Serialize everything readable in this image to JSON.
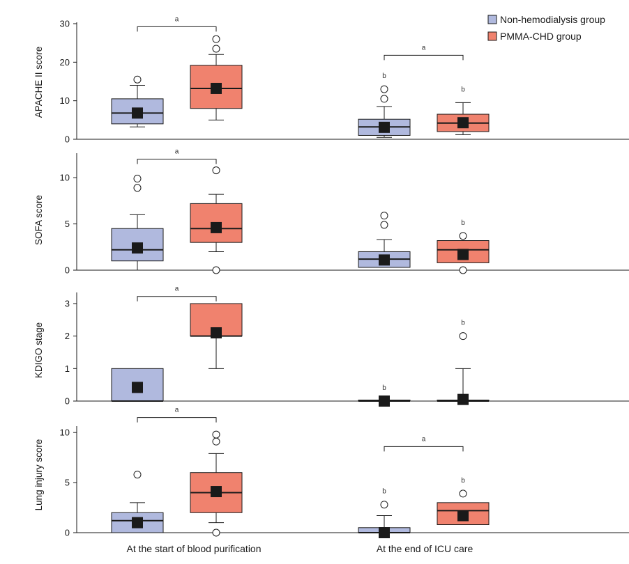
{
  "chart_data": {
    "type": "box",
    "categories": [
      "At the start of blood purification",
      "At the end of ICU care"
    ],
    "legend": {
      "placement": "top-right",
      "entries": [
        {
          "name": "Non-hemodialysis group",
          "color": "#b0b9de"
        },
        {
          "name": "PMMA-CHD group",
          "color": "#f0826e"
        }
      ]
    },
    "colors": {
      "stroke": "#1a1a1a",
      "mean_marker": "#1a1a1a",
      "background": "#ffffff"
    },
    "panels": [
      {
        "ylabel": "APACHE II score",
        "ylim": [
          0,
          30
        ],
        "yticks": [
          0,
          10,
          20,
          30
        ],
        "groups": [
          {
            "category": 0,
            "series": 0,
            "whisker_low": 3.2,
            "q1": 4,
            "median": 6.8,
            "q3": 10.5,
            "whisker_high": 14,
            "mean": 6.8,
            "outliers": [
              15.5
            ],
            "sig": ""
          },
          {
            "category": 0,
            "series": 1,
            "whisker_low": 5,
            "q1": 8,
            "median": 13.2,
            "q3": 19.2,
            "whisker_high": 22,
            "mean": 13.2,
            "outliers": [
              23.5,
              26
            ],
            "sig": ""
          },
          {
            "category": 1,
            "series": 0,
            "whisker_low": 0.5,
            "q1": 1,
            "median": 3.2,
            "q3": 5.2,
            "whisker_high": 8.5,
            "mean": 3.1,
            "outliers": [
              10.5,
              13
            ],
            "sig": "b"
          },
          {
            "category": 1,
            "series": 1,
            "whisker_low": 1.2,
            "q1": 2,
            "median": 4.2,
            "q3": 6.5,
            "whisker_high": 9.5,
            "mean": 4.3,
            "outliers": [],
            "sig": "b"
          }
        ],
        "brackets": [
          {
            "category": 0,
            "value": 29.2,
            "label": "a"
          },
          {
            "category": 1,
            "value": 21.8,
            "label": "a"
          }
        ]
      },
      {
        "ylabel": "SOFA score",
        "ylim": [
          0,
          12.5
        ],
        "yticks": [
          0,
          5,
          10
        ],
        "groups": [
          {
            "category": 0,
            "series": 0,
            "whisker_low": 0,
            "q1": 1,
            "median": 2.2,
            "q3": 4.5,
            "whisker_high": 6,
            "mean": 2.4,
            "outliers": [
              8.9,
              9.9
            ],
            "sig": ""
          },
          {
            "category": 0,
            "series": 1,
            "whisker_low": 2,
            "q1": 3,
            "median": 4.5,
            "q3": 7.2,
            "whisker_high": 8.2,
            "mean": 4.6,
            "outliers": [
              0,
              10.8
            ],
            "sig": ""
          },
          {
            "category": 1,
            "series": 0,
            "whisker_low": 0.3,
            "q1": 0.3,
            "median": 1.2,
            "q3": 2,
            "whisker_high": 3.3,
            "mean": 1.1,
            "outliers": [
              4.9,
              5.9
            ],
            "sig": ""
          },
          {
            "category": 1,
            "series": 1,
            "whisker_low": 0.8,
            "q1": 0.8,
            "median": 2.2,
            "q3": 3.2,
            "whisker_high": 3.2,
            "mean": 1.7,
            "outliers": [
              0,
              3.7
            ],
            "sig": "b"
          }
        ],
        "brackets": [
          {
            "category": 0,
            "value": 12.0,
            "label": "a"
          }
        ]
      },
      {
        "ylabel": "KDIGO stage",
        "ylim": [
          0,
          3.3
        ],
        "yticks": [
          0,
          1,
          2,
          3
        ],
        "groups": [
          {
            "category": 0,
            "series": 0,
            "whisker_low": 0,
            "q1": 0,
            "median": 0,
            "q3": 1,
            "whisker_high": 1,
            "mean": 0.42,
            "outliers": [],
            "sig": ""
          },
          {
            "category": 0,
            "series": 1,
            "whisker_low": 1,
            "q1": 2,
            "median": 2,
            "q3": 3,
            "whisker_high": 3,
            "mean": 2.1,
            "outliers": [],
            "sig": ""
          },
          {
            "category": 1,
            "series": 0,
            "whisker_low": 0,
            "q1": 0,
            "median": 0,
            "q3": 0,
            "whisker_high": 0,
            "mean": 0,
            "outliers": [],
            "sig": "b"
          },
          {
            "category": 1,
            "series": 1,
            "whisker_low": 0,
            "q1": 0,
            "median": 0,
            "q3": 0,
            "whisker_high": 1,
            "mean": 0.05,
            "outliers": [
              2
            ],
            "sig": "b"
          }
        ],
        "brackets": [
          {
            "category": 0,
            "value": 3.22,
            "label": "a"
          }
        ]
      },
      {
        "ylabel": "Lung injury score",
        "ylim": [
          0,
          10.5
        ],
        "yticks": [
          0,
          5,
          10
        ],
        "groups": [
          {
            "category": 0,
            "series": 0,
            "whisker_low": 0,
            "q1": 0,
            "median": 1.2,
            "q3": 2,
            "whisker_high": 3,
            "mean": 1,
            "outliers": [
              5.8
            ],
            "sig": ""
          },
          {
            "category": 0,
            "series": 1,
            "whisker_low": 1,
            "q1": 2,
            "median": 4,
            "q3": 6,
            "whisker_high": 7.9,
            "mean": 4.1,
            "outliers": [
              0,
              9.1,
              9.8
            ],
            "sig": ""
          },
          {
            "category": 1,
            "series": 0,
            "whisker_low": 0,
            "q1": 0,
            "median": 0,
            "q3": 0.5,
            "whisker_high": 1.7,
            "mean": 0,
            "outliers": [
              2.8
            ],
            "sig": "b"
          },
          {
            "category": 1,
            "series": 1,
            "whisker_low": 0.8,
            "q1": 0.8,
            "median": 2.2,
            "q3": 3,
            "whisker_high": 3,
            "mean": 1.7,
            "outliers": [
              3.9
            ],
            "sig": "b"
          }
        ],
        "brackets": [
          {
            "category": 0,
            "value": 11.5,
            "label": "a"
          },
          {
            "category": 1,
            "value": 8.6,
            "label": "a"
          }
        ]
      }
    ]
  }
}
